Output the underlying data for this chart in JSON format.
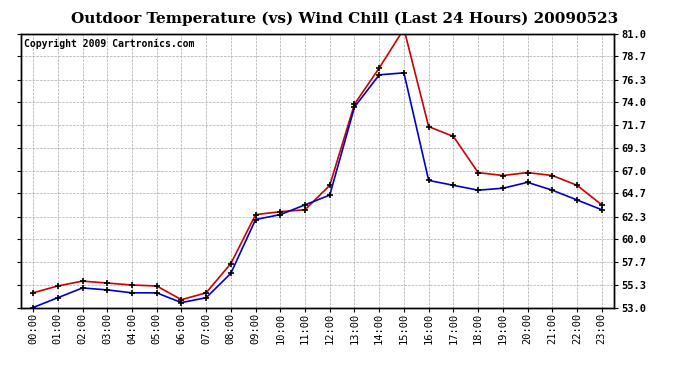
{
  "title": "Outdoor Temperature (vs) Wind Chill (Last 24 Hours) 20090523",
  "copyright": "Copyright 2009 Cartronics.com",
  "hours": [
    "00:00",
    "01:00",
    "02:00",
    "03:00",
    "04:00",
    "05:00",
    "06:00",
    "07:00",
    "08:00",
    "09:00",
    "10:00",
    "11:00",
    "12:00",
    "13:00",
    "14:00",
    "15:00",
    "16:00",
    "17:00",
    "18:00",
    "19:00",
    "20:00",
    "21:00",
    "22:00",
    "23:00"
  ],
  "temp": [
    54.5,
    55.2,
    55.7,
    55.5,
    55.3,
    55.2,
    53.8,
    54.5,
    57.5,
    62.5,
    62.8,
    63.0,
    65.5,
    73.8,
    77.5,
    81.5,
    71.5,
    70.5,
    66.8,
    66.5,
    66.8,
    66.5,
    65.5,
    63.5
  ],
  "wind_chill": [
    53.0,
    54.0,
    55.0,
    54.8,
    54.5,
    54.5,
    53.5,
    54.0,
    56.5,
    62.0,
    62.5,
    63.5,
    64.5,
    73.5,
    76.8,
    77.0,
    66.0,
    65.5,
    65.0,
    65.2,
    65.8,
    65.0,
    64.0,
    63.0
  ],
  "temp_color": "#cc0000",
  "wind_chill_color": "#0000cc",
  "marker": "+",
  "markersize": 5,
  "linewidth": 1.2,
  "markeredgewidth": 1.2,
  "ylim": [
    53.0,
    81.0
  ],
  "yticks": [
    53.0,
    55.3,
    57.7,
    60.0,
    62.3,
    64.7,
    67.0,
    69.3,
    71.7,
    74.0,
    76.3,
    78.7,
    81.0
  ],
  "background_color": "#ffffff",
  "plot_bg_color": "#ffffff",
  "grid_color": "#aaaaaa",
  "title_fontsize": 11,
  "copyright_fontsize": 7,
  "tick_fontsize": 7.5,
  "tick_color": "#000000"
}
